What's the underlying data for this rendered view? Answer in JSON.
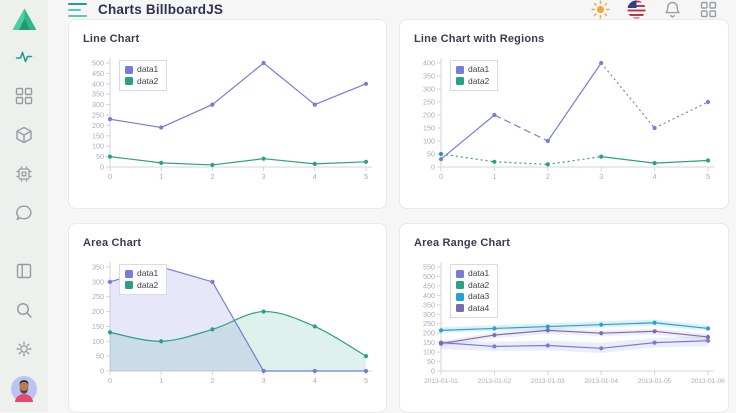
{
  "header": {
    "title": "Charts BillboardJS",
    "right_icons": [
      "sun",
      "us-flag",
      "bell",
      "apps-grid"
    ]
  },
  "sidebar": {
    "top_icons": [
      {
        "icon": "activity",
        "active": true
      },
      {
        "icon": "dashboard-grid",
        "active": false
      },
      {
        "icon": "cube",
        "active": false
      },
      {
        "icon": "chip",
        "active": false
      },
      {
        "icon": "chat-bubble",
        "active": false
      }
    ],
    "bottom_icons": [
      {
        "icon": "panel-layout",
        "active": false
      },
      {
        "icon": "search",
        "active": false
      },
      {
        "icon": "gear",
        "active": false
      }
    ],
    "accent_color": "#22a08b"
  },
  "colors": {
    "purple": "#777cdb",
    "green": "#2ba183",
    "cyan": "#27a2d4",
    "muted_purple": "#7b6cb0",
    "axis": "#d3d5da",
    "tick_text": "#a9acbf"
  },
  "chart_data": [
    {
      "type": "line",
      "title": "Line Chart",
      "categories": [
        0,
        1,
        2,
        3,
        4,
        5
      ],
      "ylim": [
        0,
        500
      ],
      "ytick_step": 50,
      "grid": false,
      "legend_position": "inset-top-left",
      "legend": [
        {
          "label": "data1",
          "color": "#777cdb"
        },
        {
          "label": "data2",
          "color": "#2ba183"
        }
      ],
      "series": [
        {
          "name": "data1",
          "color": "#777cdb",
          "values": [
            230,
            190,
            300,
            500,
            300,
            400
          ]
        },
        {
          "name": "data2",
          "color": "#2ba183",
          "values": [
            50,
            20,
            10,
            40,
            15,
            25
          ]
        }
      ]
    },
    {
      "type": "line",
      "title": "Line Chart with Regions",
      "categories": [
        0,
        1,
        2,
        3,
        4,
        5
      ],
      "ylim": [
        0,
        400
      ],
      "ytick_step": 50,
      "grid": false,
      "legend_position": "inset-top-left",
      "legend": [
        {
          "label": "data1",
          "color": "#777cdb"
        },
        {
          "label": "data2",
          "color": "#2ba183"
        }
      ],
      "series": [
        {
          "name": "data1",
          "color": "#777cdb",
          "values": [
            30,
            200,
            100,
            400,
            150,
            250
          ],
          "dash_segments": [
            "solid",
            "dashed",
            "solid",
            "dotted",
            "dotted"
          ]
        },
        {
          "name": "data2",
          "color": "#2ba183",
          "values": [
            50,
            20,
            10,
            40,
            15,
            25
          ],
          "dash_segments": [
            "dotted",
            "dotted",
            "dotted",
            "solid",
            "solid"
          ]
        }
      ]
    },
    {
      "type": "area",
      "title": "Area Chart",
      "categories": [
        0,
        1,
        2,
        3,
        4,
        5
      ],
      "ylim": [
        0,
        350
      ],
      "ytick_step": 50,
      "grid": false,
      "legend_position": "inset-top-left",
      "legend": [
        {
          "label": "data1",
          "color": "#777cdb"
        },
        {
          "label": "data2",
          "color": "#2ba183"
        }
      ],
      "series": [
        {
          "name": "data1",
          "color": "#777cdb",
          "values": [
            300,
            350,
            300,
            0,
            0,
            0
          ],
          "area": true,
          "curve": "linear",
          "fill_opacity": 0.18
        },
        {
          "name": "data2",
          "color": "#2ba183",
          "values": [
            130,
            100,
            140,
            200,
            150,
            50
          ],
          "area": true,
          "curve": "spline",
          "fill_opacity": 0.15
        }
      ]
    },
    {
      "type": "area-range",
      "title": "Area Range Chart",
      "categories": [
        "2013-01-01",
        "2013-01-02",
        "2013-01-03",
        "2013-01-04",
        "2013-01-05",
        "2013-01-06"
      ],
      "ylim": [
        0,
        550
      ],
      "ytick_step": 50,
      "grid": false,
      "legend_position": "inset-top-left",
      "legend": [
        {
          "label": "data1",
          "color": "#777cdb"
        },
        {
          "label": "data2",
          "color": "#2ba183"
        },
        {
          "label": "data3",
          "color": "#27a2d4"
        },
        {
          "label": "data4",
          "color": "#7b6cb0"
        }
      ],
      "series": [
        {
          "name": "data1",
          "color": "#777cdb",
          "values": [
            150,
            130,
            135,
            120,
            150,
            160
          ],
          "low": [
            115,
            105,
            110,
            95,
            125,
            130
          ],
          "high": [
            160,
            155,
            160,
            150,
            175,
            185
          ],
          "fill_opacity": 0.14
        },
        {
          "name": "data2",
          "color": "#2ba183",
          "values": null
        },
        {
          "name": "data4",
          "color": "#7b6cb0",
          "values": [
            145,
            190,
            215,
            200,
            210,
            180
          ],
          "low": [
            130,
            172,
            196,
            184,
            192,
            162
          ],
          "high": [
            158,
            205,
            228,
            214,
            224,
            196
          ],
          "fill_opacity": 0.12
        },
        {
          "name": "data3",
          "color": "#27a2d4",
          "values": [
            215,
            225,
            235,
            245,
            255,
            225
          ],
          "low": [
            202,
            212,
            218,
            230,
            240,
            212
          ],
          "high": [
            232,
            242,
            252,
            263,
            272,
            242
          ],
          "fill_opacity": 0.16
        }
      ]
    }
  ]
}
